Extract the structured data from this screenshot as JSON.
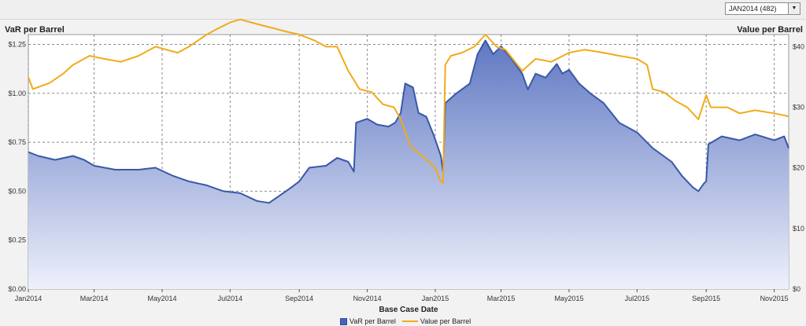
{
  "selector": {
    "value": "JAN2014 (482)",
    "arrow": "▼"
  },
  "chart_data": {
    "type": "area",
    "xlabel": "Base Case Date",
    "left_axis_title": "VaR per Barrel",
    "right_axis_title": "Value per Barrel",
    "x_ticks": [
      "Jan2014",
      "Mar2014",
      "May2014",
      "Jul2014",
      "Sep2014",
      "Nov2014",
      "Jan2015",
      "Mar2015",
      "May2015",
      "Jul2015",
      "Sep2015",
      "Nov2015"
    ],
    "y_left_ticks": [
      "$0.00",
      "$0.25",
      "$0.50",
      "$0.75",
      "$1.00",
      "$1.25"
    ],
    "y_right_ticks": [
      "$0",
      "$10",
      "$20",
      "$30",
      "$40"
    ],
    "ylim_left": [
      0,
      1.3
    ],
    "ylim_right": [
      0,
      42
    ],
    "grid": true,
    "legend_position": "bottom",
    "colors": {
      "var_line": "#3a58a8",
      "var_fill_top": "#5f78c2",
      "var_fill_bottom": "#eef0fb",
      "value_line": "#f0ab19"
    },
    "series": [
      {
        "name": "VaR per Barrel",
        "axis": "left",
        "style": "area",
        "points": [
          [
            "2014-01-01",
            0.7
          ],
          [
            "2014-01-10",
            0.68
          ],
          [
            "2014-01-25",
            0.66
          ],
          [
            "2014-02-10",
            0.68
          ],
          [
            "2014-02-20",
            0.66
          ],
          [
            "2014-03-01",
            0.63
          ],
          [
            "2014-03-20",
            0.61
          ],
          [
            "2014-04-10",
            0.61
          ],
          [
            "2014-04-25",
            0.62
          ],
          [
            "2014-05-10",
            0.58
          ],
          [
            "2014-05-25",
            0.55
          ],
          [
            "2014-06-10",
            0.53
          ],
          [
            "2014-06-25",
            0.5
          ],
          [
            "2014-07-10",
            0.49
          ],
          [
            "2014-07-25",
            0.45
          ],
          [
            "2014-08-05",
            0.44
          ],
          [
            "2014-08-15",
            0.48
          ],
          [
            "2014-08-25",
            0.52
          ],
          [
            "2014-09-01",
            0.55
          ],
          [
            "2014-09-10",
            0.62
          ],
          [
            "2014-09-25",
            0.63
          ],
          [
            "2014-10-05",
            0.67
          ],
          [
            "2014-10-15",
            0.65
          ],
          [
            "2014-10-20",
            0.6
          ],
          [
            "2014-10-22",
            0.85
          ],
          [
            "2014-11-01",
            0.87
          ],
          [
            "2014-11-10",
            0.84
          ],
          [
            "2014-11-20",
            0.83
          ],
          [
            "2014-11-26",
            0.85
          ],
          [
            "2014-12-01",
            0.9
          ],
          [
            "2014-12-05",
            1.05
          ],
          [
            "2014-12-12",
            1.03
          ],
          [
            "2014-12-17",
            0.9
          ],
          [
            "2014-12-24",
            0.88
          ],
          [
            "2014-12-31",
            0.78
          ],
          [
            "2015-01-06",
            0.68
          ],
          [
            "2015-01-08",
            0.6
          ],
          [
            "2015-01-10",
            0.95
          ],
          [
            "2015-01-20",
            1.0
          ],
          [
            "2015-02-01",
            1.05
          ],
          [
            "2015-02-08",
            1.2
          ],
          [
            "2015-02-15",
            1.27
          ],
          [
            "2015-02-22",
            1.2
          ],
          [
            "2015-03-01",
            1.24
          ],
          [
            "2015-03-10",
            1.18
          ],
          [
            "2015-03-20",
            1.1
          ],
          [
            "2015-03-25",
            1.02
          ],
          [
            "2015-04-01",
            1.1
          ],
          [
            "2015-04-10",
            1.08
          ],
          [
            "2015-04-20",
            1.15
          ],
          [
            "2015-04-25",
            1.1
          ],
          [
            "2015-05-01",
            1.12
          ],
          [
            "2015-05-10",
            1.05
          ],
          [
            "2015-05-20",
            1.0
          ],
          [
            "2015-06-01",
            0.95
          ],
          [
            "2015-06-15",
            0.85
          ],
          [
            "2015-07-01",
            0.8
          ],
          [
            "2015-07-15",
            0.72
          ],
          [
            "2015-08-01",
            0.65
          ],
          [
            "2015-08-10",
            0.58
          ],
          [
            "2015-08-20",
            0.52
          ],
          [
            "2015-08-25",
            0.5
          ],
          [
            "2015-08-30",
            0.54
          ],
          [
            "2015-09-01",
            0.55
          ],
          [
            "2015-09-03",
            0.74
          ],
          [
            "2015-09-15",
            0.78
          ],
          [
            "2015-10-01",
            0.76
          ],
          [
            "2015-10-15",
            0.79
          ],
          [
            "2015-11-01",
            0.76
          ],
          [
            "2015-11-10",
            0.78
          ],
          [
            "2015-11-14",
            0.72
          ]
        ]
      },
      {
        "name": "Value per Barrel",
        "axis": "right",
        "style": "line",
        "points": [
          [
            "2014-01-01",
            35.0
          ],
          [
            "2014-01-05",
            33.0
          ],
          [
            "2014-01-20",
            34.0
          ],
          [
            "2014-02-01",
            35.5
          ],
          [
            "2014-02-10",
            37.0
          ],
          [
            "2014-02-25",
            38.5
          ],
          [
            "2014-03-10",
            38.0
          ],
          [
            "2014-03-25",
            37.5
          ],
          [
            "2014-04-10",
            38.5
          ],
          [
            "2014-04-25",
            40.0
          ],
          [
            "2014-05-05",
            39.5
          ],
          [
            "2014-05-15",
            39.0
          ],
          [
            "2014-05-25",
            40.0
          ],
          [
            "2014-06-10",
            42.0
          ],
          [
            "2014-06-20",
            43.0
          ],
          [
            "2014-07-01",
            44.0
          ],
          [
            "2014-07-10",
            44.5
          ],
          [
            "2014-07-20",
            44.0
          ],
          [
            "2014-07-30",
            43.5
          ],
          [
            "2014-08-10",
            43.0
          ],
          [
            "2014-08-20",
            42.5
          ],
          [
            "2014-09-01",
            42.0
          ],
          [
            "2014-09-15",
            41.0
          ],
          [
            "2014-09-25",
            40.0
          ],
          [
            "2014-10-05",
            40.0
          ],
          [
            "2014-10-15",
            36.0
          ],
          [
            "2014-10-25",
            33.0
          ],
          [
            "2014-11-05",
            32.5
          ],
          [
            "2014-11-15",
            30.5
          ],
          [
            "2014-11-25",
            30.0
          ],
          [
            "2014-12-01",
            28.0
          ],
          [
            "2014-12-10",
            23.5
          ],
          [
            "2014-12-20",
            22.0
          ],
          [
            "2015-01-01",
            20.0
          ],
          [
            "2015-01-05",
            18.0
          ],
          [
            "2015-01-08",
            17.5
          ],
          [
            "2015-01-10",
            37.0
          ],
          [
            "2015-01-15",
            38.5
          ],
          [
            "2015-01-25",
            39.0
          ],
          [
            "2015-02-05",
            40.0
          ],
          [
            "2015-02-15",
            42.0
          ],
          [
            "2015-02-25",
            40.0
          ],
          [
            "2015-03-05",
            39.5
          ],
          [
            "2015-03-20",
            36.0
          ],
          [
            "2015-04-01",
            38.0
          ],
          [
            "2015-04-15",
            37.5
          ],
          [
            "2015-05-01",
            39.0
          ],
          [
            "2015-05-15",
            39.5
          ],
          [
            "2015-06-01",
            39.0
          ],
          [
            "2015-06-15",
            38.5
          ],
          [
            "2015-07-01",
            38.0
          ],
          [
            "2015-07-10",
            37.0
          ],
          [
            "2015-07-15",
            33.0
          ],
          [
            "2015-07-25",
            32.5
          ],
          [
            "2015-08-05",
            31.0
          ],
          [
            "2015-08-15",
            30.0
          ],
          [
            "2015-08-25",
            28.0
          ],
          [
            "2015-09-01",
            32.0
          ],
          [
            "2015-09-05",
            30.0
          ],
          [
            "2015-09-20",
            30.0
          ],
          [
            "2015-10-01",
            29.0
          ],
          [
            "2015-10-15",
            29.5
          ],
          [
            "2015-11-01",
            29.0
          ],
          [
            "2015-11-14",
            28.5
          ]
        ]
      }
    ]
  }
}
